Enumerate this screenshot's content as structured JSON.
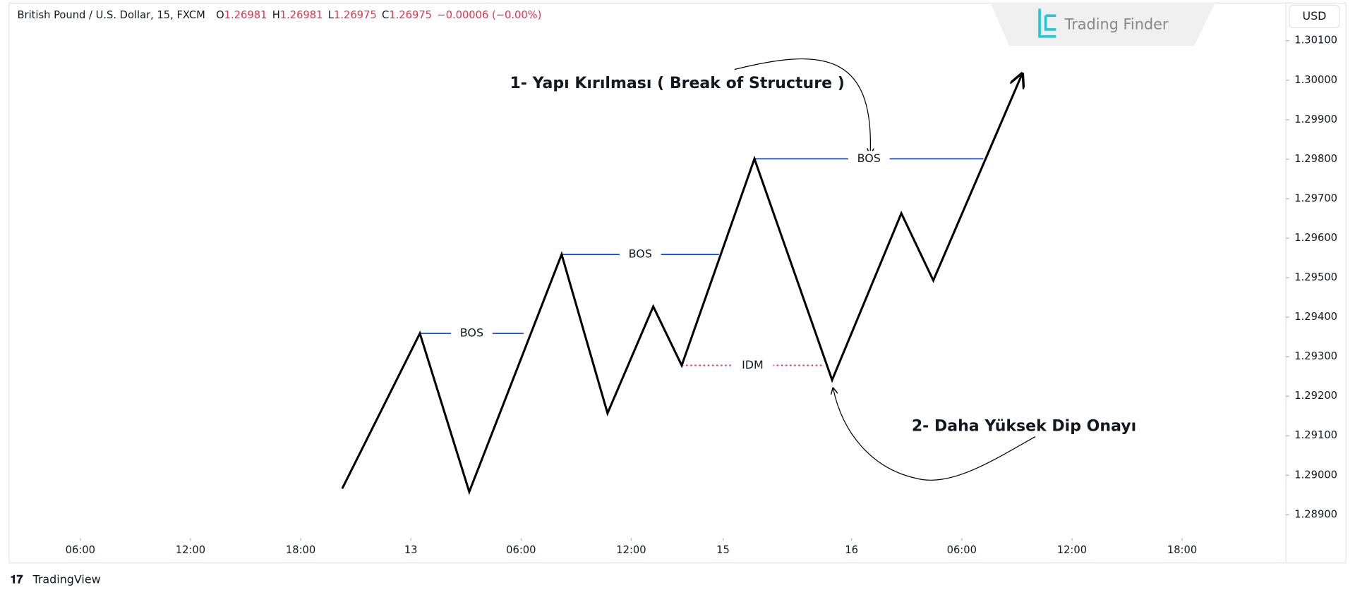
{
  "chart_data": {
    "type": "line",
    "title": "British Pound / U.S. Dollar, 15, FXCM",
    "ohlc": [
      {
        "label": "O",
        "value": 1.26981
      },
      {
        "label": "H",
        "value": 1.26981
      },
      {
        "label": "L",
        "value": 1.26975
      },
      {
        "label": "C",
        "value": 1.26975
      }
    ],
    "change": "−0.00006 (−0.00%)",
    "currency": "USD",
    "brand": "Trading Finder",
    "footer": "TradingView",
    "xlim": [
      2.19,
      71.65
    ],
    "xticks": [
      {
        "value": 6,
        "label": "06:00"
      },
      {
        "value": 12,
        "label": "12:00"
      },
      {
        "value": 18,
        "label": "18:00"
      },
      {
        "value": 24,
        "label": "13"
      },
      {
        "value": 30,
        "label": "06:00"
      },
      {
        "value": 36,
        "label": "12:00"
      },
      {
        "value": 41,
        "label": "15"
      },
      {
        "value": 48,
        "label": "16"
      },
      {
        "value": 54,
        "label": "06:00"
      },
      {
        "value": 60,
        "label": "12:00"
      },
      {
        "value": 66,
        "label": "18:00"
      }
    ],
    "ylim": [
      1.28845,
      1.30192
    ],
    "yticks": [
      {
        "value": 1.289,
        "label": "1.28900"
      },
      {
        "value": 1.29,
        "label": "1.29000"
      },
      {
        "value": 1.291,
        "label": "1.29100"
      },
      {
        "value": 1.292,
        "label": "1.29200"
      },
      {
        "value": 1.293,
        "label": "1.29300"
      },
      {
        "value": 1.294,
        "label": "1.29400"
      },
      {
        "value": 1.295,
        "label": "1.29500"
      },
      {
        "value": 1.296,
        "label": "1.29600"
      },
      {
        "value": 1.297,
        "label": "1.29700"
      },
      {
        "value": 1.298,
        "label": "1.29800"
      },
      {
        "value": 1.299,
        "label": "1.29900"
      },
      {
        "value": 1.3,
        "label": "1.30000"
      },
      {
        "value": 1.301,
        "label": "1.30100"
      }
    ],
    "series": [
      {
        "color": "#000000",
        "x": [
          20.26,
          24.49,
          27.18,
          32.21,
          34.71,
          37.2,
          38.75,
          42.71,
          46.94,
          50.71,
          52.45,
          57.29
        ],
        "values": [
          1.28966,
          1.29359,
          1.28958,
          1.29559,
          1.29157,
          1.29427,
          1.29278,
          1.29801,
          1.29241,
          1.29663,
          1.29493,
          1.30016
        ]
      }
    ],
    "levels": [
      {
        "label": "BOS",
        "y": 1.29359,
        "x": [
          24.49,
          30.14
        ],
        "color": "#1e53e5",
        "dotted": false
      },
      {
        "label": "BOS",
        "y": 1.29559,
        "x": [
          32.21,
          40.78
        ],
        "color": "#1e53e5",
        "dotted": false
      },
      {
        "label": "BOS",
        "y": 1.29801,
        "x": [
          42.71,
          55.18
        ],
        "color": "#1e53e5",
        "dotted": false
      },
      {
        "label": "IDM",
        "y": 1.29278,
        "x": [
          38.75,
          46.47
        ],
        "color": "#e0334f",
        "dotted": true
      }
    ],
    "annotations": [
      "1- Yapı Kırılması ( Break of Structure )",
      "2- Daha Yüksek Dip Onayı"
    ]
  }
}
